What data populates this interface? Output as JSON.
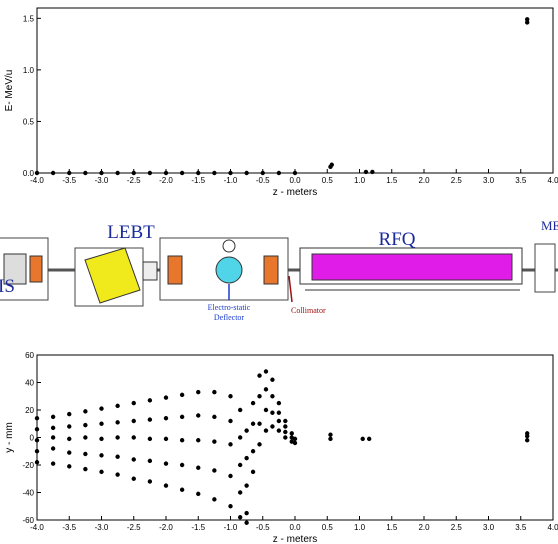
{
  "chart_data": [
    {
      "type": "scatter",
      "x_label": "z - meters",
      "y_label": "E- MeV/u",
      "xlim": [
        -4,
        4
      ],
      "ylim": [
        0,
        1.6
      ],
      "xticks": [
        {
          "value": -4,
          "label": "-4.0"
        },
        {
          "value": -3.5,
          "label": "-3.5"
        },
        {
          "value": -3,
          "label": "-3.0"
        },
        {
          "value": -2.5,
          "label": "-2.5"
        },
        {
          "value": -2,
          "label": "-2.0"
        },
        {
          "value": -1.5,
          "label": "-1.5"
        },
        {
          "value": -1,
          "label": "-1.0"
        },
        {
          "value": -0.5,
          "label": "-0.5"
        },
        {
          "value": 0,
          "label": "0.0"
        },
        {
          "value": 0.5,
          "label": "0.5"
        },
        {
          "value": 1,
          "label": "1.0"
        },
        {
          "value": 1.5,
          "label": "1.5"
        },
        {
          "value": 2,
          "label": "2.0"
        },
        {
          "value": 2.5,
          "label": "2.5"
        },
        {
          "value": 3,
          "label": "3.0"
        },
        {
          "value": 3.5,
          "label": "3.5"
        },
        {
          "value": 4,
          "label": "4.0"
        }
      ],
      "yticks": [
        {
          "value": 0,
          "label": "0.0"
        },
        {
          "value": 0.5,
          "label": "0.5"
        },
        {
          "value": 1,
          "label": "1.0"
        },
        {
          "value": 1.5,
          "label": "1.5"
        }
      ],
      "series": [
        {
          "color": "#000000",
          "x": [
            -4,
            -3.75,
            -3.5,
            -3.25,
            -3,
            -2.75,
            -2.5,
            -2.25,
            -2,
            -1.75,
            -1.5,
            -1.25,
            -1,
            -0.75,
            -0.5,
            -0.25,
            0,
            0.55,
            0.57,
            1.1,
            1.2,
            3.6,
            3.6
          ],
          "values": [
            0,
            0,
            0,
            0,
            0,
            0,
            0,
            0,
            0,
            0,
            0,
            0,
            0,
            0,
            0,
            0,
            0,
            0.06,
            0.08,
            0.01,
            0.01,
            1.46,
            1.49
          ]
        }
      ]
    },
    {
      "type": "scatter",
      "x_label": "z - meters",
      "y_label": "y - mm",
      "xlim": [
        -4,
        4
      ],
      "ylim": [
        -60,
        60
      ],
      "xticks": [
        {
          "value": -4,
          "label": "-4.0"
        },
        {
          "value": -3.5,
          "label": "-3.5"
        },
        {
          "value": -3,
          "label": "-3.0"
        },
        {
          "value": -2.5,
          "label": "-2.5"
        },
        {
          "value": -2,
          "label": "-2.0"
        },
        {
          "value": -1.5,
          "label": "-1.5"
        },
        {
          "value": -1,
          "label": "-1.0"
        },
        {
          "value": -0.5,
          "label": "-0.5"
        },
        {
          "value": 0,
          "label": "0.0"
        },
        {
          "value": 0.5,
          "label": "0.5"
        },
        {
          "value": 1,
          "label": "1.0"
        },
        {
          "value": 1.5,
          "label": "1.5"
        },
        {
          "value": 2,
          "label": "2.0"
        },
        {
          "value": 2.5,
          "label": "2.5"
        },
        {
          "value": 3,
          "label": "3.0"
        },
        {
          "value": 3.5,
          "label": "3.5"
        },
        {
          "value": 4,
          "label": "4.0"
        }
      ],
      "yticks": [
        -60,
        -40,
        -20,
        0,
        20,
        40,
        60
      ],
      "series": [
        {
          "color": "#000000",
          "x": [
            -4,
            -4,
            -4,
            -4,
            -4,
            -3.75,
            -3.75,
            -3.75,
            -3.75,
            -3.75,
            -3.5,
            -3.5,
            -3.5,
            -3.5,
            -3.5,
            -3.25,
            -3.25,
            -3.25,
            -3.25,
            -3.25,
            -3,
            -3,
            -3,
            -3,
            -3,
            -2.75,
            -2.75,
            -2.75,
            -2.75,
            -2.75,
            -2.5,
            -2.5,
            -2.5,
            -2.5,
            -2.5,
            -2.25,
            -2.25,
            -2.25,
            -2.25,
            -2.25,
            -2,
            -2,
            -2,
            -2,
            -2,
            -1.75,
            -1.75,
            -1.75,
            -1.75,
            -1.75,
            -1.5,
            -1.5,
            -1.5,
            -1.5,
            -1.5,
            -1.25,
            -1.25,
            -1.25,
            -1.25,
            -1.25,
            -1,
            -1,
            -1,
            -1,
            -1,
            -0.85,
            -0.85,
            -0.85,
            -0.85,
            -0.85,
            -0.75,
            -0.75,
            -0.75,
            -0.75,
            -0.75,
            -0.65,
            -0.65,
            -0.65,
            -0.65,
            -0.55,
            -0.55,
            -0.55,
            -0.55,
            -0.45,
            -0.45,
            -0.45,
            -0.45,
            -0.35,
            -0.35,
            -0.35,
            -0.35,
            -0.25,
            -0.25,
            -0.25,
            -0.25,
            -0.15,
            -0.15,
            -0.15,
            -0.15,
            -0.05,
            -0.05,
            -0.05,
            0,
            0,
            0.55,
            0.55,
            1.05,
            1.15,
            3.6,
            3.6,
            3.6
          ],
          "values": [
            14,
            6,
            -2,
            -10,
            -18,
            15,
            7,
            0,
            -8,
            -19,
            17,
            8,
            -1,
            -11,
            -21,
            19,
            9,
            0,
            -12,
            -23,
            21,
            10,
            -1,
            -13,
            -25,
            23,
            11,
            0,
            -14,
            -27,
            25,
            12,
            0,
            -16,
            -30,
            27,
            13,
            -1,
            -17,
            -32,
            29,
            14,
            -1,
            -19,
            -35,
            31,
            15,
            -2,
            -20,
            -38,
            33,
            16,
            -2,
            -22,
            -41,
            33,
            15,
            -3,
            -24,
            -45,
            30,
            12,
            -5,
            -28,
            -50,
            20,
            0,
            -20,
            -40,
            -58,
            5,
            -15,
            -35,
            -55,
            -62,
            25,
            10,
            -10,
            -25,
            45,
            30,
            10,
            -5,
            48,
            35,
            20,
            5,
            42,
            30,
            18,
            8,
            25,
            18,
            12,
            5,
            12,
            8,
            4,
            0,
            3,
            0,
            -3,
            -4,
            -1,
            -1,
            2,
            -1,
            -1,
            -2,
            1,
            3
          ]
        }
      ]
    }
  ],
  "diagram": {
    "is": "IS",
    "lebt": "LEBT",
    "rfq": "RFQ",
    "mebt": "MEBT",
    "deflector": [
      "Electro-static",
      "Deflector"
    ],
    "collimator": "Collimator"
  }
}
